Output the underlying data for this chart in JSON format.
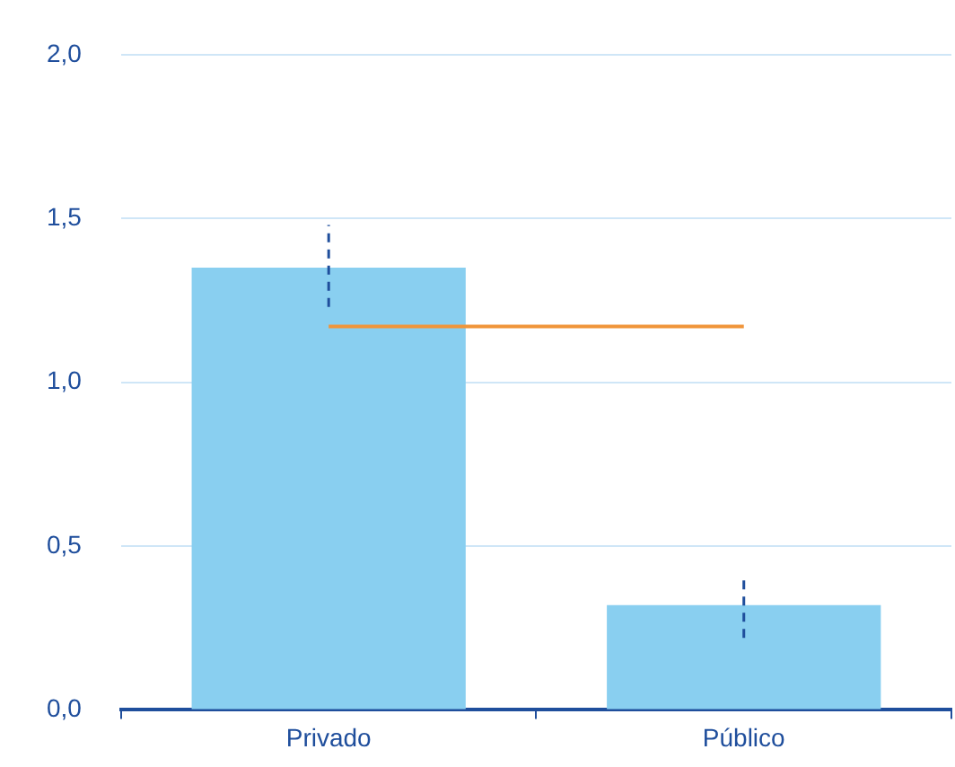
{
  "chart_data": {
    "type": "bar",
    "categories": [
      "Privado",
      "Público"
    ],
    "series": [
      {
        "color": "#89cff0",
        "values": [
          1.35,
          0.32
        ],
        "errors": [
          [
            1.23,
            1.48
          ],
          [
            0.22,
            0.41
          ]
        ]
      },
      {
        "type": "line",
        "color": "#f0953a",
        "values": [
          1.17,
          1.17
        ],
        "marker": "none",
        "line_style": "solid"
      }
    ],
    "ylim": [
      0,
      2
    ],
    "yticks": [
      {
        "value": 0,
        "label": "0,0"
      },
      {
        "value": 0.5,
        "label": "0,5"
      },
      {
        "value": 1,
        "label": "1,0"
      },
      {
        "value": 1.5,
        "label": "1,5"
      },
      {
        "value": 2,
        "label": "2,0"
      }
    ],
    "grid": "y",
    "legend": false
  }
}
